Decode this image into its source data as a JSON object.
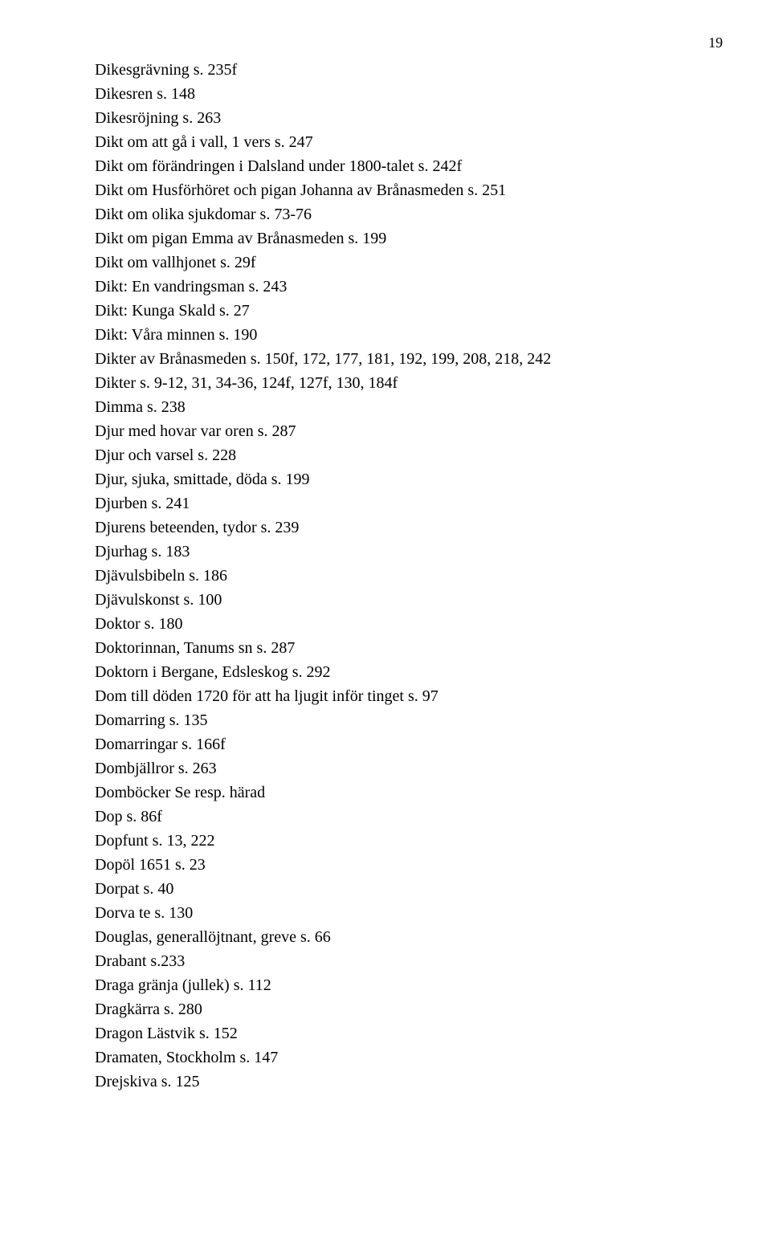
{
  "page_number": "19",
  "entries": [
    "Dikesgrävning s. 235f",
    "Dikesren s. 148",
    "Dikesröjning s. 263",
    "Dikt om att gå i vall, 1 vers s. 247",
    "Dikt om förändringen i Dalsland under 1800-talet s. 242f",
    "Dikt om Husförhöret och pigan Johanna av Brånasmeden s. 251",
    "Dikt om olika sjukdomar s. 73-76",
    "Dikt om pigan Emma av Brånasmeden s. 199",
    "Dikt om vallhjonet s. 29f",
    "Dikt: En vandringsman s. 243",
    "Dikt: Kunga Skald s. 27",
    "Dikt: Våra minnen s. 190",
    "Dikter av Brånasmeden s. 150f, 172, 177, 181, 192, 199, 208, 218, 242",
    "Dikter s. 9-12, 31, 34-36, 124f, 127f, 130, 184f",
    "Dimma s. 238",
    "Djur med hovar var oren s. 287",
    "Djur och varsel s. 228",
    "Djur, sjuka, smittade, döda s. 199",
    "Djurben s. 241",
    "Djurens beteenden, tydor s. 239",
    "Djurhag s. 183",
    "Djävulsbibeln s. 186",
    "Djävulskonst s. 100",
    "Doktor s. 180",
    "Doktorinnan, Tanums sn s. 287",
    "Doktorn i Bergane, Edsleskog s. 292",
    "Dom till döden 1720 för att ha ljugit inför tinget s. 97",
    "Domarring s. 135",
    "Domarringar s. 166f",
    "Dombjällror s. 263",
    "Domböcker Se resp. härad",
    "Dop s. 86f",
    "Dopfunt s. 13, 222",
    "Dopöl 1651 s. 23",
    "Dorpat s. 40",
    "Dorva te s. 130",
    "Douglas, generallöjtnant, greve s. 66",
    "Drabant s.233",
    "Draga gränja (jullek) s. 112",
    "Dragkärra s. 280",
    "Dragon Lästvik s. 152",
    "Dramaten, Stockholm s. 147",
    "Drejskiva s. 125"
  ]
}
